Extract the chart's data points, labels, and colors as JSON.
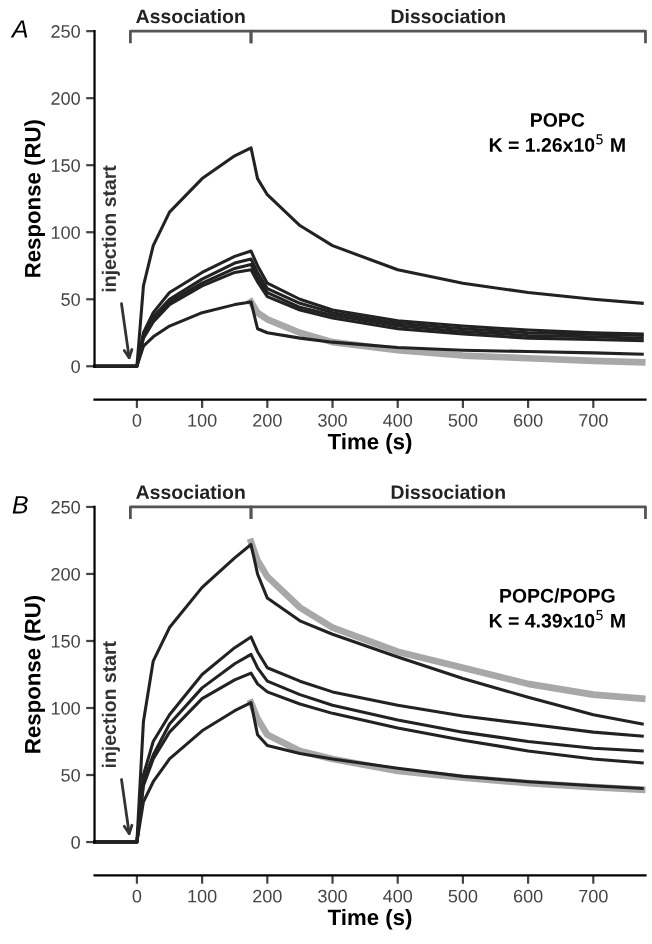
{
  "chart_data": [
    {
      "type": "line",
      "title": "A",
      "xlabel": "Time (s)",
      "ylabel": "Response (RU)",
      "xlim": [
        -65,
        780
      ],
      "ylim": [
        0,
        250
      ],
      "xticks": [
        0,
        100,
        200,
        300,
        400,
        500,
        600,
        700
      ],
      "yticks": [
        0,
        50,
        100,
        150,
        200,
        250
      ],
      "grid": false,
      "legend": false,
      "marker": "none",
      "line_style": "solid",
      "x": [
        -65,
        0,
        10,
        25,
        50,
        100,
        150,
        175,
        185,
        200,
        250,
        300,
        400,
        500,
        600,
        700,
        775
      ],
      "annotations": [
        "Association",
        "Dissociation",
        {
          "text": "injection start",
          "x": -10,
          "y": 0
        },
        "POPC",
        "K = 1.26x10$^{5}$ M"
      ],
      "series": [
        {
          "color": "#a8a8a8",
          "x": [
            175,
            185,
            200,
            250,
            300,
            400,
            500,
            600,
            700,
            775
          ],
          "values": [
            48,
            40,
            35,
            25,
            18,
            12,
            8,
            6,
            4,
            3
          ]
        },
        {
          "color": "#222222",
          "values": [
            0,
            0,
            60,
            90,
            115,
            140,
            157,
            163,
            140,
            128,
            105,
            90,
            72,
            62,
            55,
            50,
            47
          ]
        },
        {
          "color": "#222222",
          "values": [
            0,
            0,
            25,
            40,
            55,
            70,
            82,
            86,
            75,
            62,
            50,
            42,
            34,
            30,
            27,
            25,
            24
          ]
        },
        {
          "color": "#222222",
          "values": [
            0,
            0,
            23,
            37,
            50,
            65,
            77,
            80,
            70,
            58,
            47,
            40,
            32,
            28,
            25,
            24,
            23
          ]
        },
        {
          "color": "#222222",
          "values": [
            0,
            0,
            22,
            35,
            48,
            62,
            73,
            76,
            66,
            55,
            44,
            38,
            30,
            26,
            23,
            22,
            21
          ]
        },
        {
          "color": "#222222",
          "values": [
            0,
            0,
            21,
            33,
            46,
            60,
            70,
            72,
            63,
            52,
            42,
            36,
            28,
            24,
            21,
            20,
            19
          ]
        },
        {
          "color": "#222222",
          "values": [
            0,
            0,
            15,
            22,
            30,
            40,
            46,
            48,
            28,
            25,
            21,
            18,
            14,
            12,
            11,
            10,
            9
          ]
        }
      ]
    },
    {
      "type": "line",
      "title": "B",
      "xlabel": "Time (s)",
      "ylabel": "Response (RU)",
      "xlim": [
        -65,
        780
      ],
      "ylim": [
        0,
        250
      ],
      "xticks": [
        0,
        100,
        200,
        300,
        400,
        500,
        600,
        700
      ],
      "yticks": [
        0,
        50,
        100,
        150,
        200,
        250
      ],
      "grid": false,
      "legend": false,
      "marker": "none",
      "line_style": "solid",
      "x": [
        -65,
        0,
        10,
        25,
        50,
        100,
        150,
        175,
        185,
        200,
        250,
        300,
        400,
        500,
        600,
        700,
        775
      ],
      "annotations": [
        "Association",
        "Dissociation",
        {
          "text": "injection start",
          "x": -10,
          "y": 0
        },
        "POPC/POPG",
        "K = 4.39x10$^{5}$ M"
      ],
      "series": [
        {
          "color": "#a8a8a8",
          "x": [
            175,
            185,
            200,
            250,
            300,
            400,
            500,
            600,
            700,
            775
          ],
          "values": [
            224,
            210,
            198,
            175,
            160,
            142,
            130,
            118,
            110,
            107
          ]
        },
        {
          "color": "#a8a8a8",
          "x": [
            175,
            185,
            200,
            250,
            300,
            400,
            500,
            600,
            700,
            775
          ],
          "values": [
            104,
            92,
            80,
            68,
            62,
            53,
            48,
            44,
            41,
            39
          ]
        },
        {
          "color": "#222222",
          "values": [
            0,
            0,
            90,
            135,
            160,
            190,
            212,
            222,
            200,
            182,
            165,
            155,
            138,
            122,
            108,
            95,
            88
          ]
        },
        {
          "color": "#222222",
          "values": [
            0,
            0,
            50,
            75,
            95,
            125,
            145,
            153,
            142,
            130,
            120,
            112,
            102,
            94,
            88,
            82,
            79
          ]
        },
        {
          "color": "#222222",
          "values": [
            0,
            0,
            45,
            65,
            88,
            115,
            133,
            140,
            130,
            120,
            110,
            102,
            91,
            82,
            75,
            70,
            68
          ]
        },
        {
          "color": "#222222",
          "values": [
            0,
            0,
            42,
            62,
            82,
            107,
            121,
            126,
            118,
            112,
            103,
            96,
            85,
            76,
            68,
            62,
            59
          ]
        },
        {
          "color": "#222222",
          "values": [
            0,
            0,
            30,
            45,
            62,
            83,
            98,
            104,
            80,
            72,
            66,
            62,
            55,
            49,
            45,
            42,
            40
          ]
        }
      ]
    }
  ]
}
